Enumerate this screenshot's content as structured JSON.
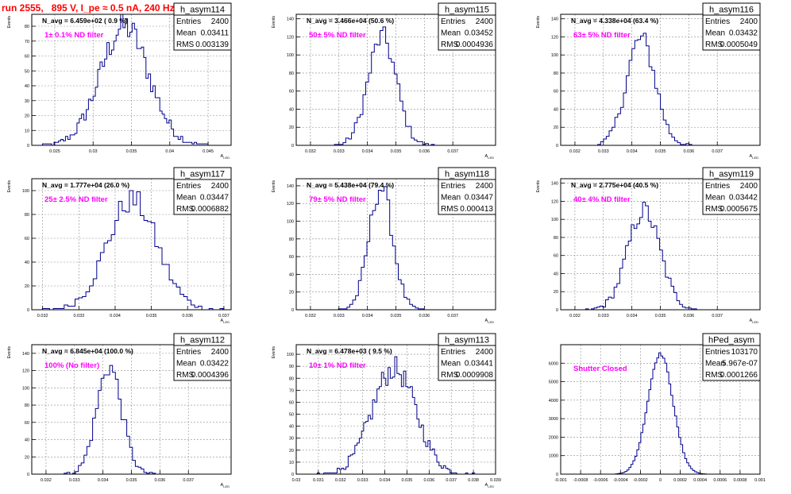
{
  "page_title": "run 2555,   895 V, I_pe ≈ 0.5 nA, 240 Hz",
  "colors": {
    "histogram": "#00008b",
    "label": "#ff00ff",
    "title": "#ff0000",
    "grid": "#8c8c8c"
  },
  "chart_data": [
    {
      "type": "histogram",
      "name": "h_asym114",
      "entries": "2400",
      "mean": "0.03411",
      "rms": "0.003139",
      "navg": "N_avg = 6.459e+02 ( 0.9 %)",
      "label": "1± 0.1% ND filter",
      "xlabel": "A_LED",
      "ylabel": "Events",
      "xlim": [
        0.022,
        0.048
      ],
      "ylim": [
        0,
        88
      ],
      "xticks": [
        "0.025",
        "0.03",
        "0.035",
        "0.04",
        "0.045"
      ],
      "xtick_values": [
        0.025,
        0.03,
        0.035,
        0.04,
        0.045
      ],
      "yticks": [
        "0",
        "10",
        "20",
        "30",
        "40",
        "50",
        "60",
        "70",
        "80"
      ],
      "ytick_values": [
        0,
        10,
        20,
        30,
        40,
        50,
        60,
        70,
        80
      ],
      "center": 0.0341,
      "sigma": 0.00314,
      "peak": 80,
      "bin_width": 0.0003
    },
    {
      "type": "histogram",
      "name": "h_asym115",
      "entries": "2400",
      "mean": "0.03452",
      "rms": "0.0004936",
      "navg": "N_avg = 3.466e+04 (50.6 %)",
      "label": "50± 5% ND filter",
      "xlabel": "A_LED",
      "ylabel": "Events",
      "xlim": [
        0.0315,
        0.0385
      ],
      "ylim": [
        0,
        145
      ],
      "xticks": [
        "0.032",
        "0.033",
        "0.034",
        "0.035",
        "0.036",
        "0.037"
      ],
      "xtick_values": [
        0.032,
        0.033,
        0.034,
        0.035,
        0.036,
        0.037
      ],
      "yticks": [
        "0",
        "20",
        "40",
        "60",
        "80",
        "100",
        "120",
        "140"
      ],
      "ytick_values": [
        0,
        20,
        40,
        60,
        80,
        100,
        120,
        140
      ],
      "center": 0.03452,
      "sigma": 0.000494,
      "peak": 120,
      "bin_width": 0.0001
    },
    {
      "type": "histogram",
      "name": "h_asym116",
      "entries": "2400",
      "mean": "0.03432",
      "rms": "0.0005049",
      "navg": "N_avg = 4.338e+04 (63.4 %)",
      "label": "63± 5% ND filter",
      "xlabel": "A_LED",
      "ylabel": "Events",
      "xlim": [
        0.0315,
        0.0385
      ],
      "ylim": [
        0,
        145
      ],
      "xticks": [
        "0.032",
        "0.033",
        "0.034",
        "0.035",
        "0.036",
        "0.037"
      ],
      "xtick_values": [
        0.032,
        0.033,
        0.034,
        0.035,
        0.036,
        0.037
      ],
      "yticks": [
        "0",
        "20",
        "40",
        "60",
        "80",
        "100",
        "120",
        "140"
      ],
      "ytick_values": [
        0,
        20,
        40,
        60,
        80,
        100,
        120,
        140
      ],
      "center": 0.03432,
      "sigma": 0.000505,
      "peak": 118,
      "bin_width": 0.0001
    },
    {
      "type": "histogram",
      "name": "h_asym117",
      "entries": "2400",
      "mean": "0.03447",
      "rms": "0.0006882",
      "navg": "N_avg = 1.777e+04 (26.0 %)",
      "label": "25± 2.5% ND filter",
      "xlabel": "A_LED",
      "ylabel": "Events",
      "xlim": [
        0.0317,
        0.0372
      ],
      "ylim": [
        0,
        110
      ],
      "xticks": [
        "0.032",
        "0.033",
        "0.034",
        "0.035",
        "0.036",
        "0.037"
      ],
      "xtick_values": [
        0.032,
        0.033,
        0.034,
        0.035,
        0.036,
        0.037
      ],
      "yticks": [
        "0",
        "20",
        "40",
        "60",
        "80",
        "100"
      ],
      "ytick_values": [
        0,
        20,
        40,
        60,
        80,
        100
      ],
      "center": 0.03447,
      "sigma": 0.000688,
      "peak": 92,
      "bin_width": 0.0001
    },
    {
      "type": "histogram",
      "name": "h_asym118",
      "entries": "2400",
      "mean": "0.03447",
      "rms": "0.000413",
      "navg": "N_avg = 5.438e+04 (79.4 %)",
      "label": "79± 5% ND filter",
      "xlabel": "A_LED",
      "ylabel": "Events",
      "xlim": [
        0.0315,
        0.0385
      ],
      "ylim": [
        0,
        148
      ],
      "xticks": [
        "0.032",
        "0.033",
        "0.034",
        "0.035",
        "0.036",
        "0.037"
      ],
      "xtick_values": [
        0.032,
        0.033,
        0.034,
        0.035,
        0.036,
        0.037
      ],
      "yticks": [
        "0",
        "20",
        "40",
        "60",
        "80",
        "100",
        "120",
        "140"
      ],
      "ytick_values": [
        0,
        20,
        40,
        60,
        80,
        100,
        120,
        140
      ],
      "center": 0.03447,
      "sigma": 0.000413,
      "peak": 138,
      "bin_width": 0.0001
    },
    {
      "type": "histogram",
      "name": "h_asym119",
      "entries": "2400",
      "mean": "0.03442",
      "rms": "0.0005675",
      "navg": "N_avg = 2.775e+04 (40.5 %)",
      "label": "40± 4% ND filter",
      "xlabel": "A_LED",
      "ylabel": "Events",
      "xlim": [
        0.0315,
        0.0385
      ],
      "ylim": [
        0,
        145
      ],
      "xticks": [
        "0.032",
        "0.033",
        "0.034",
        "0.035",
        "0.036",
        "0.037"
      ],
      "xtick_values": [
        0.032,
        0.033,
        0.034,
        0.035,
        0.036,
        0.037
      ],
      "yticks": [
        "0",
        "20",
        "40",
        "60",
        "80",
        "100",
        "120",
        "140"
      ],
      "ytick_values": [
        0,
        20,
        40,
        60,
        80,
        100,
        120,
        140
      ],
      "center": 0.03442,
      "sigma": 0.000568,
      "peak": 110,
      "bin_width": 0.0001
    },
    {
      "type": "histogram",
      "name": "h_asym112",
      "entries": "2400",
      "mean": "0.03422",
      "rms": "0.0004396",
      "navg": "N_avg = 6.845e+04 (100.0 %)",
      "label": "100% (No filter)",
      "xlabel": "A_LED",
      "ylabel": "Events",
      "xlim": [
        0.0315,
        0.0385
      ],
      "ylim": [
        0,
        150
      ],
      "xticks": [
        "0.032",
        "0.033",
        "0.034",
        "0.035",
        "0.036",
        "0.037"
      ],
      "xtick_values": [
        0.032,
        0.033,
        0.034,
        0.035,
        0.036,
        0.037
      ],
      "yticks": [
        "0",
        "20",
        "40",
        "60",
        "80",
        "100",
        "120",
        "140"
      ],
      "ytick_values": [
        0,
        20,
        40,
        60,
        80,
        100,
        120,
        140
      ],
      "center": 0.03422,
      "sigma": 0.00044,
      "peak": 125,
      "bin_width": 0.0001
    },
    {
      "type": "histogram",
      "name": "h_asym113",
      "entries": "2400",
      "mean": "0.03441",
      "rms": "0.0009908",
      "navg": "N_avg = 6.478e+03 ( 9.5 %)",
      "label": "10± 1% ND filter",
      "xlabel": "A_LED",
      "ylabel": "Events",
      "xlim": [
        0.03,
        0.039
      ],
      "ylim": [
        0,
        108
      ],
      "xticks": [
        "0.03",
        "0.031",
        "0.032",
        "0.033",
        "0.034",
        "0.035",
        "0.036",
        "0.037",
        "0.038",
        "0.039"
      ],
      "xtick_values": [
        0.03,
        0.031,
        0.032,
        0.033,
        0.034,
        0.035,
        0.036,
        0.037,
        0.038,
        0.039
      ],
      "yticks": [
        "0",
        "10",
        "20",
        "30",
        "40",
        "50",
        "60",
        "70",
        "80",
        "90",
        "100"
      ],
      "ytick_values": [
        0,
        10,
        20,
        30,
        40,
        50,
        60,
        70,
        80,
        90,
        100
      ],
      "center": 0.03441,
      "sigma": 0.00099,
      "peak": 88,
      "bin_width": 0.0001
    },
    {
      "type": "histogram",
      "name": "hPed_asym",
      "entries": "103170",
      "mean": "5.967e-07",
      "rms": "0.0001266",
      "navg": "",
      "label": "Shutter Closed",
      "xlabel": "",
      "ylabel": "",
      "xlim": [
        -0.001,
        0.001
      ],
      "ylim": [
        0,
        7000
      ],
      "xticks": [
        "-0.001",
        "-0.0008",
        "-0.0006",
        "-0.0004",
        "-0.0002",
        "0",
        "0.0002",
        "0.0004",
        "0.0006",
        "0.0008",
        "0.001"
      ],
      "xtick_values": [
        -0.001,
        -0.0008,
        -0.0006,
        -0.0004,
        -0.0002,
        0,
        0.0002,
        0.0004,
        0.0006,
        0.0008,
        0.001
      ],
      "yticks": [
        "0",
        "1000",
        "2000",
        "3000",
        "4000",
        "5000",
        "6000"
      ],
      "ytick_values": [
        0,
        1000,
        2000,
        3000,
        4000,
        5000,
        6000
      ],
      "center": 0.0,
      "sigma": 0.0001266,
      "peak": 6500,
      "bin_width": 2e-05
    }
  ]
}
